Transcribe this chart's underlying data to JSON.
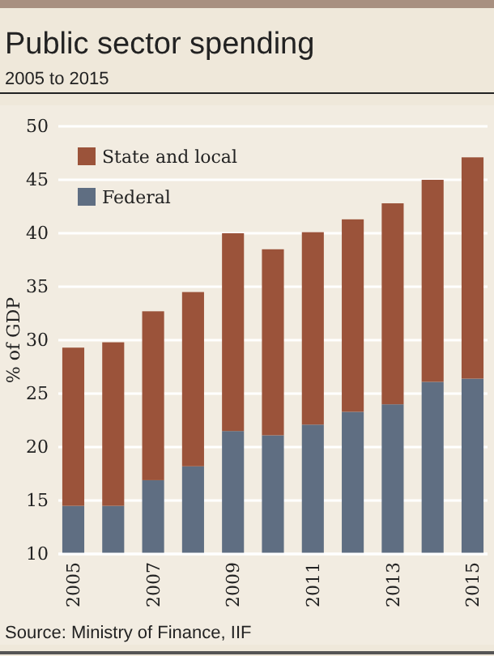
{
  "chart_data": {
    "type": "bar",
    "title": "Public sector spending",
    "subtitle": "2005 to 2015",
    "ylabel": "% of GDP",
    "annotations": [
      "Source: Ministry of Finance, IIF"
    ],
    "categories": [
      "2005",
      null,
      "2007",
      null,
      "2009",
      null,
      "2011",
      null,
      "2013",
      null,
      "2015"
    ],
    "stacked": true,
    "series": [
      {
        "name": "Federal",
        "color": "#5f6e82",
        "values": [
          14.5,
          14.5,
          16.9,
          18.2,
          21.5,
          21.1,
          22.1,
          23.3,
          24.0,
          26.1,
          26.4
        ]
      },
      {
        "name": "State and local",
        "color": "#9b533a",
        "values": [
          14.8,
          15.3,
          15.8,
          16.3,
          18.5,
          17.4,
          18.0,
          18.0,
          18.8,
          18.9,
          20.7
        ]
      }
    ],
    "ylim": [
      10,
      50
    ],
    "yticks": [
      10,
      15,
      20,
      25,
      30,
      35,
      40,
      45,
      50
    ],
    "grid": "y",
    "legend": "top left"
  }
}
